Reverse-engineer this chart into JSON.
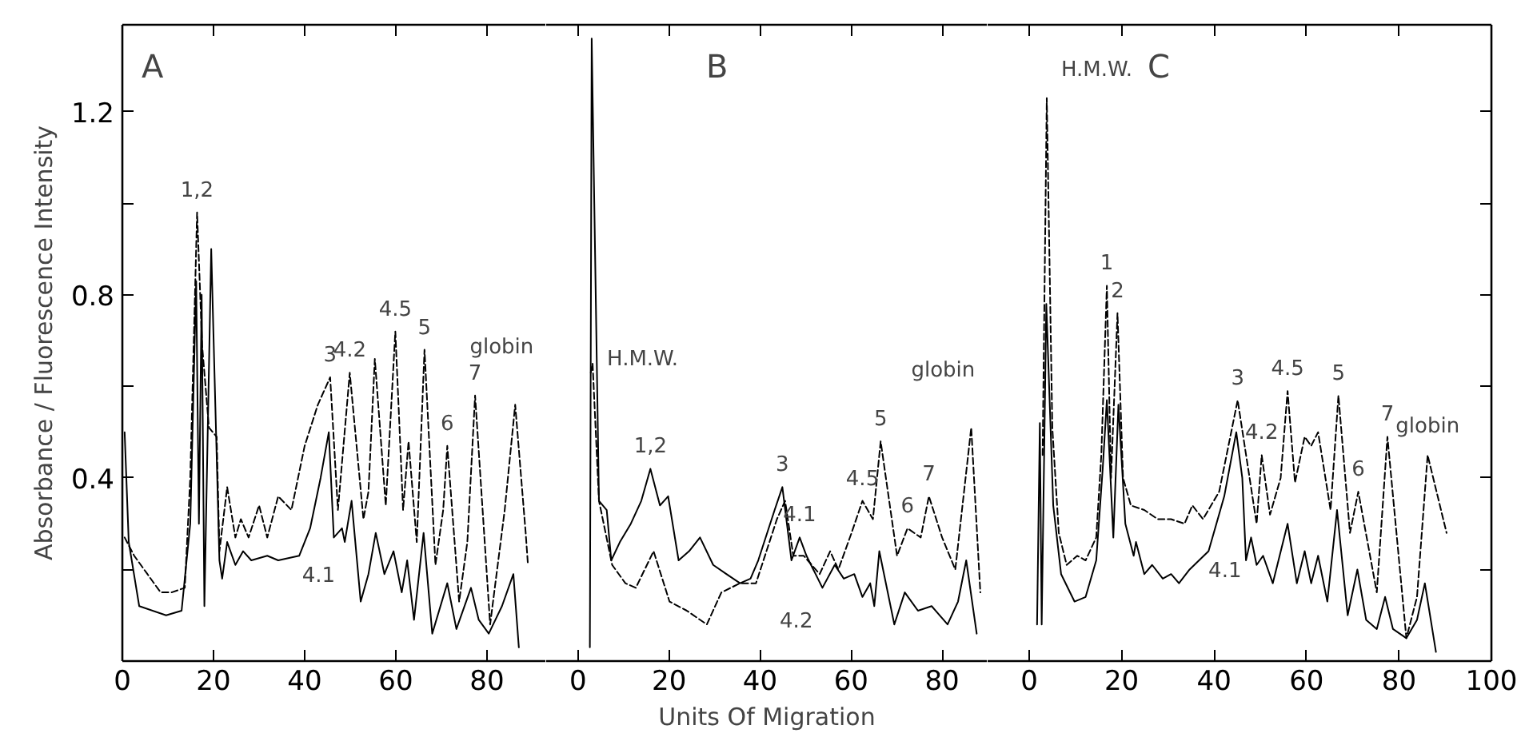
{
  "chart_data": [
    {
      "type": "line",
      "title": "A",
      "ylabel": "Absorbance / Fluorescence Intensity",
      "xlim": [
        0,
        93
      ],
      "xticks": [
        0,
        20,
        40,
        60,
        80
      ],
      "ylim": [
        0,
        1.39
      ],
      "yticks": [
        {
          "value": 0.2,
          "label": null
        },
        0.4,
        {
          "value": 0.6,
          "label": null
        },
        0.8,
        {
          "value": 1.0,
          "label": null
        },
        1.2
      ],
      "grid": false,
      "marker": "none",
      "series": [
        {
          "color": "#000000",
          "line_style": "solid",
          "x": [
            0.5,
            1.4,
            3.7,
            9.6,
            13,
            14.9,
            16.2,
            16.8,
            17.4,
            18,
            19.5,
            21.3,
            21.9,
            23,
            24.8,
            26.5,
            28.3,
            31.8,
            34.2,
            38.8,
            41.2,
            43.5,
            45.3,
            46.4,
            48.2,
            48.8,
            50.3,
            52.3,
            54,
            55.6,
            57.5,
            59.5,
            61.3,
            62.5,
            64,
            66.1,
            68,
            71.3,
            73.3,
            76.5,
            78.2,
            80.4,
            83.3,
            85.8,
            87
          ],
          "values": [
            0.5,
            0.26,
            0.12,
            0.1,
            0.11,
            0.3,
            0.83,
            0.3,
            0.8,
            0.12,
            0.9,
            0.22,
            0.18,
            0.26,
            0.21,
            0.24,
            0.22,
            0.23,
            0.22,
            0.23,
            0.29,
            0.4,
            0.5,
            0.27,
            0.29,
            0.26,
            0.35,
            0.13,
            0.19,
            0.28,
            0.19,
            0.24,
            0.15,
            0.22,
            0.09,
            0.28,
            0.06,
            0.17,
            0.07,
            0.16,
            0.09,
            0.06,
            0.12,
            0.19,
            0.03
          ]
        },
        {
          "color": "#000000",
          "line_style": "dashed",
          "x": [
            0.5,
            2.6,
            5.5,
            8.4,
            10.8,
            13.7,
            14.9,
            16.4,
            17.5,
            19,
            20.7,
            21.3,
            23,
            24.8,
            26,
            27.7,
            30,
            31.8,
            34.2,
            37.1,
            40,
            42.9,
            45.6,
            47.3,
            49.9,
            52.9,
            54,
            55.4,
            57.8,
            59.9,
            61.6,
            62.8,
            64.6,
            66.3,
            68.7,
            70.4,
            71.3,
            73.9,
            75.7,
            77.4,
            80.7,
            83.9,
            86.2,
            88.5,
            89
          ],
          "values": [
            0.27,
            0.23,
            0.19,
            0.15,
            0.15,
            0.16,
            0.4,
            0.98,
            0.69,
            0.51,
            0.49,
            0.24,
            0.38,
            0.27,
            0.31,
            0.27,
            0.34,
            0.27,
            0.36,
            0.33,
            0.47,
            0.56,
            0.62,
            0.33,
            0.63,
            0.31,
            0.37,
            0.66,
            0.34,
            0.72,
            0.33,
            0.48,
            0.26,
            0.68,
            0.21,
            0.33,
            0.47,
            0.13,
            0.26,
            0.58,
            0.08,
            0.33,
            0.56,
            0.28,
            0.21
          ]
        }
      ],
      "annotations": [
        {
          "text": "1,2",
          "x": 16.4,
          "y": 0.98
        },
        {
          "text": "3",
          "x": 45.6,
          "y": 0.62
        },
        {
          "text": "4.2",
          "x": 49.9,
          "y": 0.63
        },
        {
          "text": "4.5",
          "x": 59.9,
          "y": 0.72
        },
        {
          "text": "5",
          "x": 66.3,
          "y": 0.68
        },
        {
          "text": "6",
          "x": 71.3,
          "y": 0.47
        },
        {
          "text": "7",
          "x": 77.4,
          "y": 0.58
        },
        {
          "text": "globin",
          "x": 86.2,
          "y": 0.56
        },
        {
          "text": "4.1",
          "x": 48.8,
          "y": 0.26
        }
      ]
    },
    {
      "type": "line",
      "title": "B",
      "xlabel": "Units Of Migration",
      "xlim": [
        -7,
        90
      ],
      "xticks": [
        0,
        20,
        40,
        60,
        80
      ],
      "ylim": [
        0,
        1.39
      ],
      "tick_labels": "x",
      "grid": false,
      "marker": "none",
      "series": [
        {
          "color": "#000000",
          "line_style": "solid",
          "x": [
            2.6,
            3,
            4.6,
            6.3,
            7.3,
            9.2,
            11.6,
            13.9,
            15.9,
            18,
            19.8,
            22.1,
            24.4,
            26.8,
            29.7,
            32.6,
            35.6,
            37.9,
            39.6,
            43.2,
            44.9,
            46.9,
            48.7,
            50.2,
            53.7,
            56.4,
            58.4,
            60.7,
            62.5,
            64.2,
            65.1,
            66.2,
            69.5,
            71.8,
            74.7,
            77.7,
            81.2,
            83.5,
            85.3,
            87.6
          ],
          "values": [
            0.03,
            1.36,
            0.35,
            0.33,
            0.22,
            0.26,
            0.3,
            0.35,
            0.42,
            0.34,
            0.36,
            0.22,
            0.24,
            0.27,
            0.21,
            0.19,
            0.17,
            0.18,
            0.22,
            0.33,
            0.38,
            0.22,
            0.27,
            0.23,
            0.16,
            0.21,
            0.18,
            0.19,
            0.14,
            0.17,
            0.12,
            0.24,
            0.08,
            0.15,
            0.11,
            0.12,
            0.08,
            0.13,
            0.22,
            0.06
          ]
        },
        {
          "color": "#000000",
          "line_style": "dashed",
          "x": [
            2.8,
            3.2,
            4.6,
            7.5,
            10.4,
            12.7,
            16.6,
            20.1,
            23.9,
            28.3,
            31.5,
            35.6,
            39.1,
            43.7,
            45.5,
            47.3,
            49.6,
            53.1,
            55.4,
            57.2,
            60.1,
            62.5,
            64.8,
            66.5,
            70.1,
            72.4,
            75.3,
            77.1,
            80,
            82.9,
            86.4,
            88.4
          ],
          "values": [
            0.63,
            0.65,
            0.35,
            0.21,
            0.17,
            0.16,
            0.24,
            0.13,
            0.11,
            0.08,
            0.15,
            0.17,
            0.17,
            0.31,
            0.35,
            0.23,
            0.23,
            0.19,
            0.24,
            0.2,
            0.28,
            0.35,
            0.31,
            0.48,
            0.23,
            0.29,
            0.27,
            0.36,
            0.27,
            0.2,
            0.51,
            0.15
          ]
        }
      ],
      "annotations": [
        {
          "text": "H.M.W.",
          "x": 3.2,
          "y": 0.65
        },
        {
          "text": "1,2",
          "x": 15.9,
          "y": 0.42
        },
        {
          "text": "3",
          "x": 44.9,
          "y": 0.38
        },
        {
          "text": "4.1",
          "x": 48.7,
          "y": 0.27
        },
        {
          "text": "4.2",
          "x": 53.7,
          "y": 0.16
        },
        {
          "text": "4.5",
          "x": 62.5,
          "y": 0.35
        },
        {
          "text": "5",
          "x": 66.5,
          "y": 0.48
        },
        {
          "text": "6",
          "x": 72.4,
          "y": 0.29
        },
        {
          "text": "7",
          "x": 77.1,
          "y": 0.36
        },
        {
          "text": "globin",
          "x": 86.4,
          "y": 0.51
        }
      ]
    },
    {
      "type": "line",
      "title": "C",
      "xlim": [
        -9,
        100
      ],
      "xticks": [
        0,
        20,
        40,
        60,
        80,
        100
      ],
      "ylim": [
        0,
        1.39
      ],
      "yticks": [
        {
          "value": 0.2,
          "label": null
        },
        {
          "value": 0.4,
          "label": null
        },
        {
          "value": 0.6,
          "label": null
        },
        {
          "value": 0.8,
          "label": null
        },
        {
          "value": 1.0,
          "label": null
        },
        {
          "value": 1.2,
          "label": null
        }
      ],
      "tick_labels": "x",
      "grid": false,
      "marker": "none",
      "series": [
        {
          "color": "#000000",
          "line_style": "solid",
          "x": [
            1.7,
            2.3,
            2.7,
            3.7,
            5.2,
            6.9,
            9.8,
            12.2,
            14.5,
            15.9,
            16.8,
            18.2,
            19.3,
            20.8,
            22.6,
            23.1,
            24.9,
            26.6,
            28.9,
            30.7,
            32.4,
            34.7,
            38.8,
            42.2,
            44.8,
            46.1,
            46.9,
            48,
            49.2,
            50.6,
            52.7,
            55.9,
            57.9,
            59.6,
            61,
            62.5,
            64.5,
            66.6,
            68.9,
            71,
            72.9,
            75.2,
            77,
            78.7,
            81.6,
            83.9,
            85.6,
            88
          ],
          "values": [
            0.08,
            0.52,
            0.08,
            0.78,
            0.34,
            0.19,
            0.13,
            0.14,
            0.22,
            0.42,
            0.57,
            0.27,
            0.56,
            0.3,
            0.23,
            0.26,
            0.19,
            0.21,
            0.18,
            0.19,
            0.17,
            0.2,
            0.24,
            0.36,
            0.5,
            0.4,
            0.22,
            0.27,
            0.21,
            0.23,
            0.17,
            0.3,
            0.17,
            0.24,
            0.17,
            0.23,
            0.13,
            0.33,
            0.1,
            0.2,
            0.09,
            0.07,
            0.14,
            0.07,
            0.05,
            0.09,
            0.17,
            0.02
          ]
        },
        {
          "color": "#000000",
          "line_style": "dashed",
          "x": [
            2.9,
            3.8,
            5,
            6.4,
            8.1,
            10.4,
            12.2,
            14.5,
            15.6,
            16.8,
            17.7,
            19.1,
            20.3,
            22,
            24.9,
            27.8,
            30.7,
            33.6,
            35.3,
            37.6,
            41.1,
            45.1,
            49.2,
            50.3,
            52.1,
            54.4,
            55.9,
            57.5,
            59.6,
            61,
            62.5,
            65.2,
            66.9,
            69.4,
            71.2,
            75.2,
            77.5,
            81.6,
            83.9,
            86.2,
            90.3
          ],
          "values": [
            0.45,
            1.23,
            0.51,
            0.28,
            0.21,
            0.23,
            0.22,
            0.27,
            0.45,
            0.82,
            0.4,
            0.76,
            0.4,
            0.34,
            0.33,
            0.31,
            0.31,
            0.3,
            0.34,
            0.31,
            0.37,
            0.57,
            0.3,
            0.45,
            0.32,
            0.4,
            0.59,
            0.39,
            0.49,
            0.47,
            0.5,
            0.33,
            0.58,
            0.28,
            0.37,
            0.15,
            0.49,
            0.05,
            0.14,
            0.45,
            0.28
          ]
        }
      ],
      "annotations": [
        {
          "text": "H.M.W.",
          "x": 3.8,
          "y": 1.23
        },
        {
          "text": "1",
          "x": 16.8,
          "y": 0.82
        },
        {
          "text": "2",
          "x": 19.1,
          "y": 0.76
        },
        {
          "text": "3",
          "x": 45.1,
          "y": 0.57
        },
        {
          "text": "4.2",
          "x": 50.3,
          "y": 0.45
        },
        {
          "text": "4.5",
          "x": 55.9,
          "y": 0.59
        },
        {
          "text": "5",
          "x": 66.9,
          "y": 0.58
        },
        {
          "text": "6",
          "x": 71.2,
          "y": 0.37
        },
        {
          "text": "7",
          "x": 77.5,
          "y": 0.49
        },
        {
          "text": "globin",
          "x": 86.2,
          "y": 0.45
        },
        {
          "text": "4.1",
          "x": 48,
          "y": 0.27
        }
      ]
    }
  ]
}
